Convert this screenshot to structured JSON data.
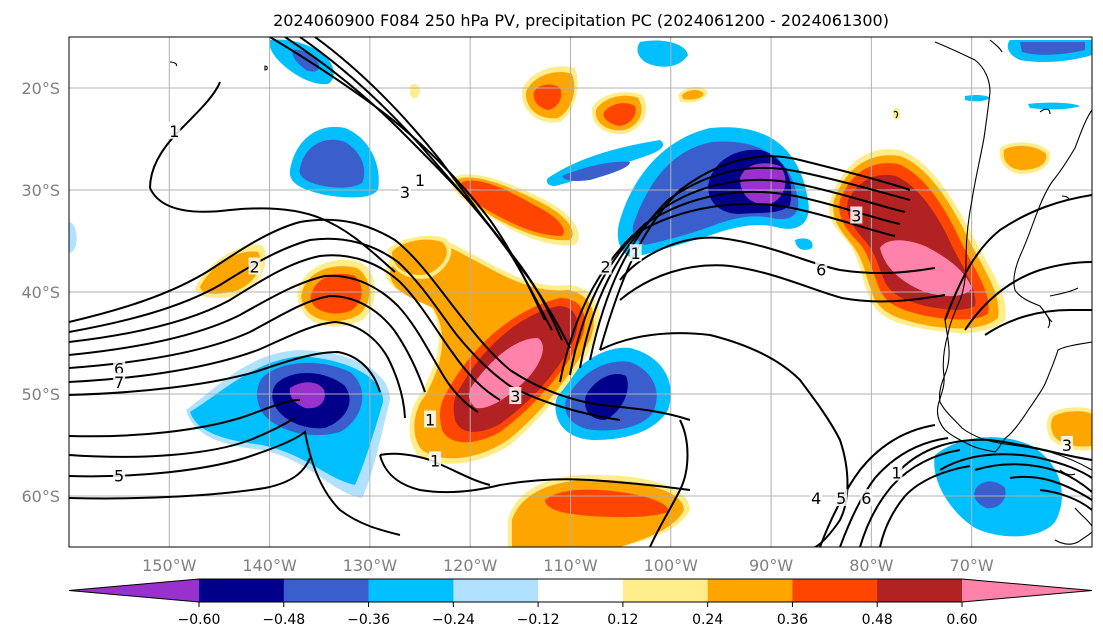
{
  "title": "2024060900 F084 250 hPa PV, precipitation PC (2024061200 - 2024061300)",
  "map": {
    "lon_range": [
      -160,
      -58
    ],
    "lat_range": [
      -65,
      -15
    ],
    "lon_ticks": [
      -150,
      -140,
      -130,
      -120,
      -110,
      -100,
      -90,
      -80,
      -70
    ],
    "lon_tick_labels": [
      "150°W",
      "140°W",
      "130°W",
      "120°W",
      "110°W",
      "100°W",
      "90°W",
      "80°W",
      "70°W"
    ],
    "lat_ticks": [
      -20,
      -30,
      -40,
      -50,
      -60
    ],
    "lat_tick_labels": [
      "20°S",
      "30°S",
      "40°S",
      "50°S",
      "60°S"
    ],
    "grid": true
  },
  "colorbar": {
    "levels": [
      -0.6,
      -0.48,
      -0.36,
      -0.24,
      -0.12,
      0.12,
      0.24,
      0.36,
      0.48,
      0.6
    ],
    "tick_labels": [
      "−0.60",
      "−0.48",
      "−0.36",
      "−0.24",
      "−0.12",
      "0.12",
      "0.24",
      "0.36",
      "0.48",
      "0.60"
    ],
    "colors": [
      "#9932cc",
      "#00008b",
      "#3a5fcd",
      "#00bfff",
      "#b0e2ff",
      "#ffffff",
      "#ffec8b",
      "#ffa500",
      "#ff4500",
      "#b22222",
      "#ff82ab"
    ],
    "extend": "both"
  },
  "pv_contour_labels": [
    {
      "text": "1",
      "lon": -149.5,
      "lat": -24.2
    },
    {
      "text": "1",
      "lon": -125,
      "lat": -29
    },
    {
      "text": "3",
      "lon": -126.5,
      "lat": -30.2
    },
    {
      "text": "2",
      "lon": -141.5,
      "lat": -37.5
    },
    {
      "text": "6",
      "lon": -155,
      "lat": -47.5
    },
    {
      "text": "7",
      "lon": -155,
      "lat": -48.8
    },
    {
      "text": "5",
      "lon": -155,
      "lat": -58
    },
    {
      "text": "1",
      "lon": -124,
      "lat": -52.5
    },
    {
      "text": "1",
      "lon": -123.5,
      "lat": -56.5
    },
    {
      "text": "3",
      "lon": -115.5,
      "lat": -50.2
    },
    {
      "text": "2",
      "lon": -106.5,
      "lat": -37.5
    },
    {
      "text": "1",
      "lon": -103.5,
      "lat": -36.2
    },
    {
      "text": "6",
      "lon": -85,
      "lat": -37.8
    },
    {
      "text": "3",
      "lon": -81.5,
      "lat": -32.5
    },
    {
      "text": "1",
      "lon": -77.5,
      "lat": -57.7
    },
    {
      "text": "4",
      "lon": -85.5,
      "lat": -60.2
    },
    {
      "text": "5",
      "lon": -83,
      "lat": -60.2
    },
    {
      "text": "6",
      "lon": -80.5,
      "lat": -60.2
    },
    {
      "text": "3",
      "lon": -60.5,
      "lat": -55
    }
  ]
}
